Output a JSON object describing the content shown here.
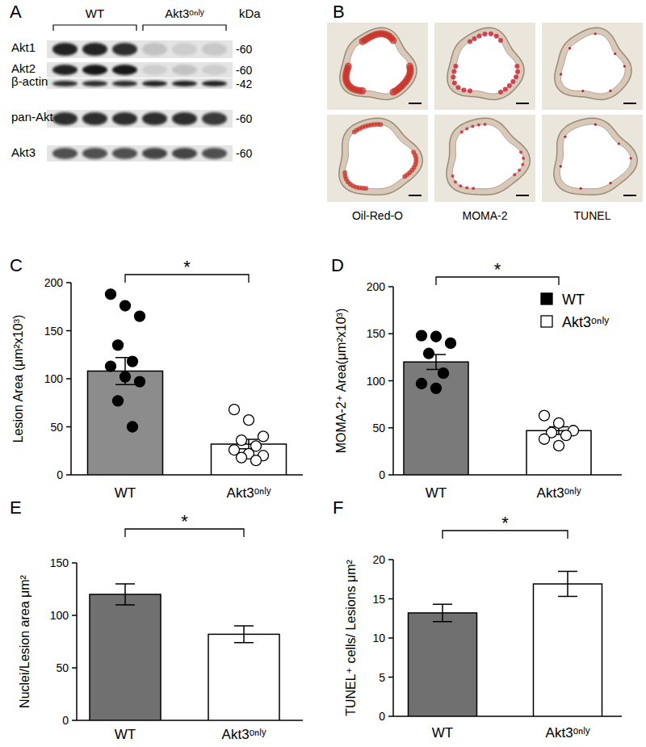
{
  "blot": {
    "panel": "A",
    "unit": "kDa",
    "groups": [
      {
        "label": "WT",
        "lanes": 3
      },
      {
        "label": "Akt3ᵒⁿˡʸ",
        "lanes": 3
      }
    ],
    "rows": [
      {
        "label": "Akt1",
        "kda": "-60",
        "bands": [
          0.9,
          0.9,
          0.85,
          0.15,
          0.1,
          0.12
        ]
      },
      {
        "label": "Akt2",
        "kda": "-60",
        "bands": [
          0.9,
          0.95,
          0.95,
          0.1,
          0.15,
          0.1
        ]
      },
      {
        "label": "β-actin",
        "kda": "-42",
        "bands": [
          0.85,
          0.85,
          0.85,
          0.9,
          0.9,
          0.9
        ]
      },
      {
        "label": "pan-Akt",
        "kda": "-60",
        "bands": [
          0.85,
          0.85,
          0.85,
          0.85,
          0.85,
          0.8
        ]
      },
      {
        "label": "Akt3",
        "kda": "-60",
        "bands": [
          0.7,
          0.7,
          0.7,
          0.75,
          0.75,
          0.7
        ]
      }
    ]
  },
  "micrographs": {
    "panel": "B",
    "stains": [
      "Oil-Red-O",
      "MOMA-2",
      "TUNEL"
    ],
    "rows": 2
  },
  "chart_data": [
    {
      "type": "bar",
      "panel": "C",
      "ylabel": "Lesion Area (μm²x10³)",
      "categories": [
        "WT",
        "Akt3ᵒⁿˡʸ"
      ],
      "values": [
        108,
        32
      ],
      "error": [
        14,
        5
      ],
      "points": [
        [
          188,
          176,
          165,
          135,
          118,
          113,
          102,
          97,
          77,
          50
        ],
        [
          68,
          57,
          40,
          36,
          30,
          26,
          22,
          20,
          18,
          15
        ]
      ],
      "colors": [
        "#8c8c8c",
        "#ffffff"
      ],
      "point_colors": [
        "#000000",
        "#ffffff"
      ],
      "marker": "circle",
      "ylim": [
        0,
        200
      ],
      "yticks": [
        0,
        50,
        100,
        150,
        200
      ],
      "significance": "*"
    },
    {
      "type": "bar",
      "panel": "D",
      "ylabel": "MOMA-2⁺ Area(μm²x10³)",
      "categories": [
        "WT",
        "Akt3ᵒⁿˡʸ"
      ],
      "values": [
        120,
        47
      ],
      "error": [
        8,
        4
      ],
      "points": [
        [
          148,
          147,
          140,
          129,
          108,
          97,
          92
        ],
        [
          63,
          55,
          47,
          45,
          42,
          38,
          31
        ]
      ],
      "colors": [
        "#7a7a7a",
        "#ffffff"
      ],
      "point_colors": [
        "#000000",
        "#ffffff"
      ],
      "marker": "circle",
      "ylim": [
        0,
        200
      ],
      "yticks": [
        0,
        50,
        100,
        150,
        200
      ],
      "significance": "*",
      "legend": "upper right",
      "legend_entries": [
        {
          "name": "WT",
          "color": "#000000"
        },
        {
          "name": "Akt3ᵒⁿˡʸ",
          "color": "#ffffff"
        }
      ]
    },
    {
      "type": "bar",
      "panel": "E",
      "ylabel": "Nuclei/Lesion area μm²",
      "categories": [
        "WT",
        "Akt3ᵒⁿˡʸ"
      ],
      "values": [
        120,
        82
      ],
      "error": [
        10,
        8
      ],
      "colors": [
        "#707070",
        "#ffffff"
      ],
      "ylim": [
        0,
        150
      ],
      "yticks": [
        0,
        50,
        100,
        150
      ],
      "significance": "*"
    },
    {
      "type": "bar",
      "panel": "F",
      "ylabel": "TUNEL⁺ cells/ Lesions μm²",
      "categories": [
        "WT",
        "Akt3ᵒⁿˡʸ"
      ],
      "values": [
        13.2,
        16.9
      ],
      "error": [
        1.1,
        1.6
      ],
      "colors": [
        "#707070",
        "#ffffff"
      ],
      "ylim": [
        0,
        20
      ],
      "yticks": [
        0,
        5,
        10,
        15,
        20
      ],
      "significance": "*"
    }
  ]
}
